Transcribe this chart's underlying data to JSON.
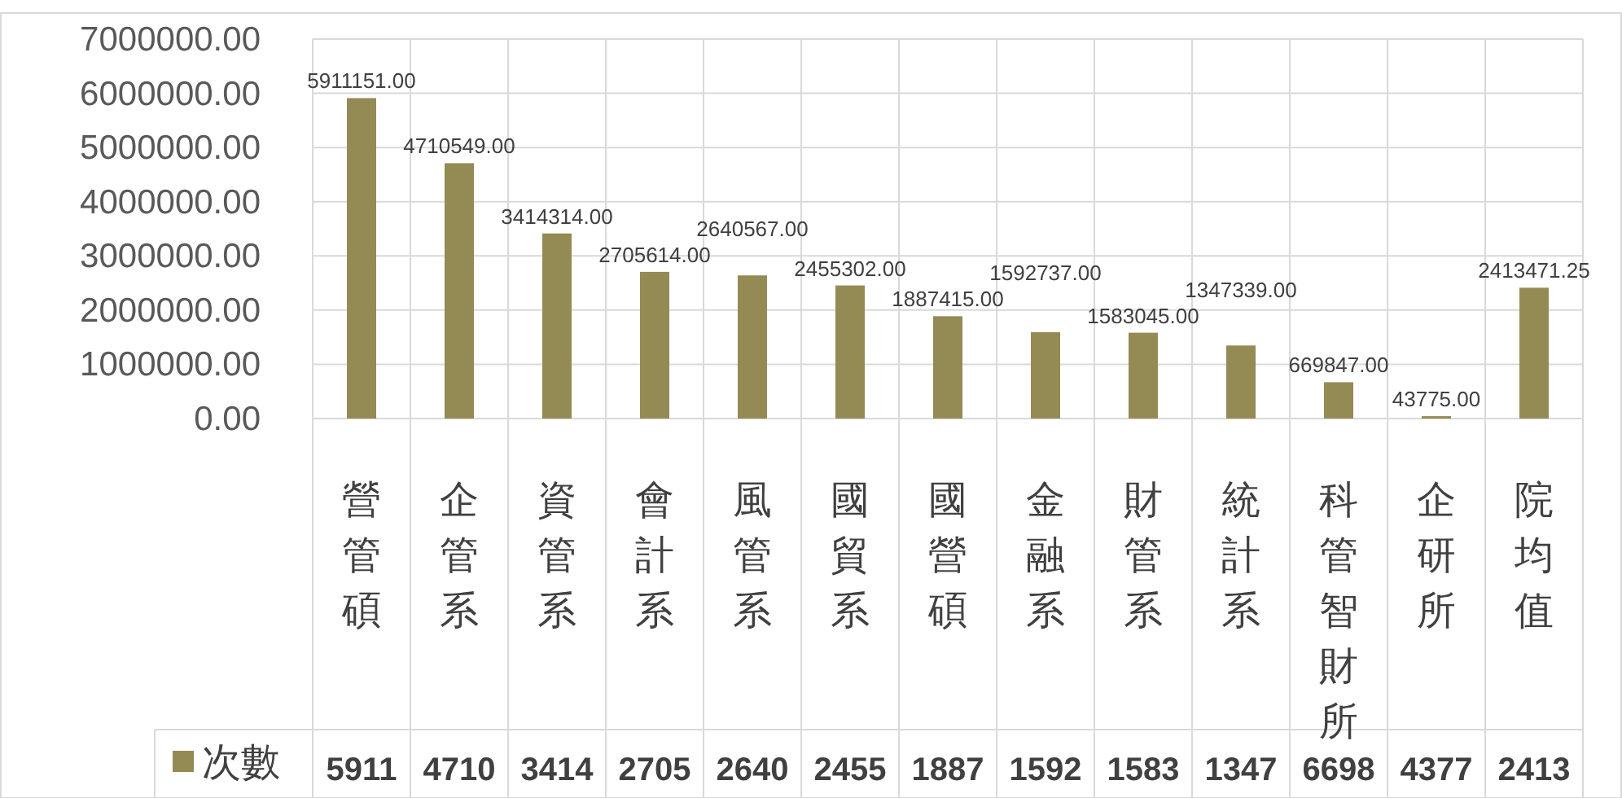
{
  "chart_data": {
    "type": "bar",
    "categories": [
      "營管碩",
      "企管系",
      "資管系",
      "會計系",
      "風管系",
      "國貿系",
      "國營碩",
      "金融系",
      "財管系",
      "統計系",
      "科管智財所",
      "企研所",
      "院均值"
    ],
    "series": [
      {
        "name": "次數",
        "color": "#948a54",
        "values": [
          5911151,
          4710549,
          3414314,
          2705614,
          2640567,
          2455302,
          1887415,
          1592737,
          1583045,
          1347339,
          669847,
          43775,
          2413471.25
        ],
        "value_labels": [
          "5911151.00",
          "4710549.00",
          "3414314.00",
          "2705614.00",
          "2640567.00",
          "2455302.00",
          "1887415.00",
          "1592737.00",
          "1583045.00",
          "1347339.00",
          "669847.00",
          "43775.00",
          "2413471.25"
        ]
      }
    ],
    "ylim": [
      0,
      7000000
    ],
    "yticks": [
      {
        "value": 0,
        "label": "0.00"
      },
      {
        "value": 1000000,
        "label": "1000000.00"
      },
      {
        "value": 2000000,
        "label": "2000000.00"
      },
      {
        "value": 3000000,
        "label": "3000000.00"
      },
      {
        "value": 4000000,
        "label": "4000000.00"
      },
      {
        "value": 5000000,
        "label": "5000000.00"
      },
      {
        "value": 6000000,
        "label": "6000000.00"
      },
      {
        "value": 7000000,
        "label": "7000000.00"
      }
    ],
    "annotations": [
      "5911",
      "4710",
      "3414",
      "2705",
      "2640",
      "2455",
      "1887",
      "1592",
      "1583",
      "1347",
      "6698",
      "4377",
      "2413"
    ],
    "grid": true,
    "legend": "bottom"
  }
}
